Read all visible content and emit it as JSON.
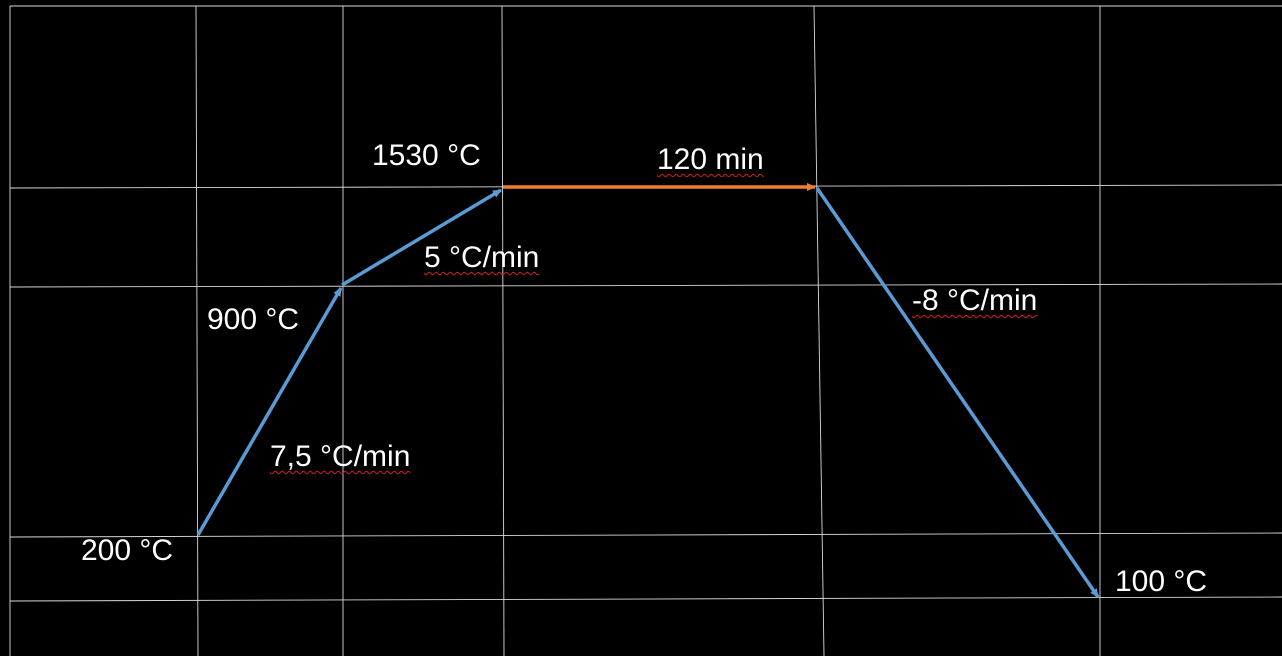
{
  "colors": {
    "background": "#000000",
    "grid": "#ffffff",
    "ramp_arrow": "#5b9bd5",
    "hold_arrow": "#ed7d31",
    "text": "#ffffff",
    "spellcheck_underline": "#d02020"
  },
  "labels": {
    "temp_start": "200 °C",
    "temp_mid": "900 °C",
    "temp_peak": "1530 °C",
    "temp_end": "100 °C",
    "rate_first_ramp": "7,5 °C/min",
    "rate_second_ramp": "5 °C/min",
    "hold_duration": "120 min",
    "rate_cooling": "-8 °C/min"
  },
  "segments": [
    {
      "name": "first-ramp",
      "from": "200 °C",
      "to": "900 °C",
      "rate": "7,5 °C/min",
      "color": "#5b9bd5"
    },
    {
      "name": "second-ramp",
      "from": "900 °C",
      "to": "1530 °C",
      "rate": "5 °C/min",
      "color": "#5b9bd5"
    },
    {
      "name": "hold",
      "at": "1530 °C",
      "duration": "120 min",
      "color": "#ed7d31"
    },
    {
      "name": "cooling",
      "from": "1530 °C",
      "to": "100 °C",
      "rate": "-8 °C/min",
      "color": "#5b9bd5"
    }
  ]
}
